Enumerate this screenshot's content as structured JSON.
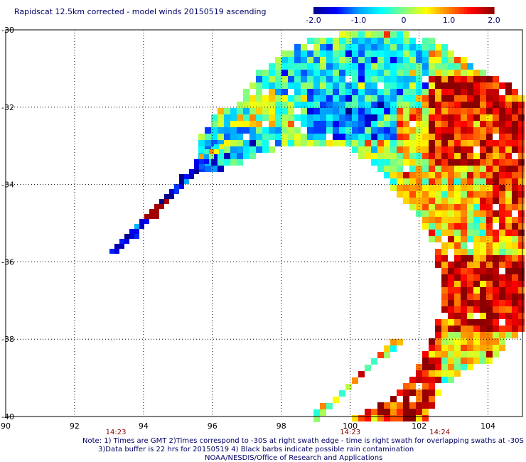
{
  "chart_data": {
    "type": "heatmap",
    "title": "Rapidscat 12.5km corrected - model winds 20150519 ascending",
    "xlim": [
      90,
      105
    ],
    "ylim": [
      -40,
      -30
    ],
    "x_ticks": [
      "90",
      "92",
      "94",
      "96",
      "98",
      "100",
      "102",
      "104"
    ],
    "y_ticks": [
      "-30",
      "-32",
      "-34",
      "-36",
      "-38",
      "-40"
    ],
    "colorbar": {
      "range": [
        -2.0,
        2.0
      ],
      "labels": [
        "-2.0",
        "-1.0",
        "0",
        "1.0",
        "2.0"
      ],
      "colors": [
        "#00008b",
        "#0000ff",
        "#00a0ff",
        "#00ffff",
        "#80ff80",
        "#ffff00",
        "#ff8000",
        "#ff0000",
        "#8b0000"
      ]
    },
    "times": [
      {
        "label": "14:23",
        "lon": 93.2
      },
      {
        "label": "14:23",
        "lon": 100.0
      },
      {
        "label": "14:24",
        "lon": 102.6
      }
    ],
    "swaths": [
      {
        "segment": "west-thin-arm",
        "value_tendency": "negative"
      },
      {
        "segment": "central-arc",
        "value_tendency": "near-zero"
      },
      {
        "segment": "east-and-south",
        "value_tendency": "positive"
      }
    ]
  },
  "notes": {
    "line1": "Note: 1) Times are GMT 2)Times correspond to -30S at right swath edge - time is right swath for overlapping swaths at -30S",
    "line2": "3)Data buffer is 22 hrs for 20150519 4) Black barbs indicate possible rain contamination",
    "line3": "NOAA/NESDIS/Office of Research and Applications"
  }
}
